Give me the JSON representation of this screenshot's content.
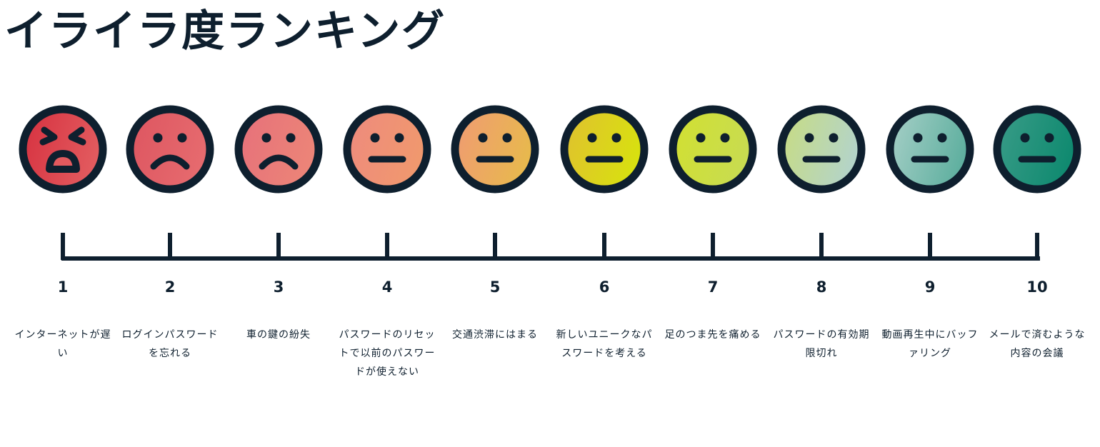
{
  "title": "イライラ度ランキング",
  "colors": {
    "outline": "#0e1f2e"
  },
  "items": [
    {
      "rank": "1",
      "label": "インターネットが遅い",
      "face": "angry",
      "color_a": "#d6303f",
      "color_b": "#e25a5e"
    },
    {
      "rank": "2",
      "label": "ログインパスワードを忘れる",
      "face": "sad",
      "color_a": "#dd5560",
      "color_b": "#e66a6e"
    },
    {
      "rank": "3",
      "label": "車の鍵の紛失",
      "face": "sad",
      "color_a": "#e6707a",
      "color_b": "#ec8478"
    },
    {
      "rank": "4",
      "label": "パスワードのリセットで以前のパスワードが使えない",
      "face": "neutral",
      "color_a": "#ee8a7e",
      "color_b": "#f0986e"
    },
    {
      "rank": "5",
      "label": "交通渋滞にはまる",
      "face": "neutral",
      "color_a": "#f09a74",
      "color_b": "#e8b84e"
    },
    {
      "rank": "6",
      "label": "新しいユニークなパスワードを考える",
      "face": "neutral",
      "color_a": "#e0c030",
      "color_b": "#d8e010"
    },
    {
      "rank": "7",
      "label": "足のつま先を痛める",
      "face": "neutral",
      "color_a": "#d2e030",
      "color_b": "#c8dc50"
    },
    {
      "rank": "8",
      "label": "パスワードの有効期限切れ",
      "face": "neutral",
      "color_a": "#c8dc80",
      "color_b": "#b4d4c8"
    },
    {
      "rank": "9",
      "label": "動画再生中にバッファリング",
      "face": "neutral",
      "color_a": "#a8d0c8",
      "color_b": "#60b0a0"
    },
    {
      "rank": "10",
      "label": "メールで済むような内容の会議",
      "face": "neutral",
      "color_a": "#3a9c88",
      "color_b": "#108a70"
    }
  ]
}
